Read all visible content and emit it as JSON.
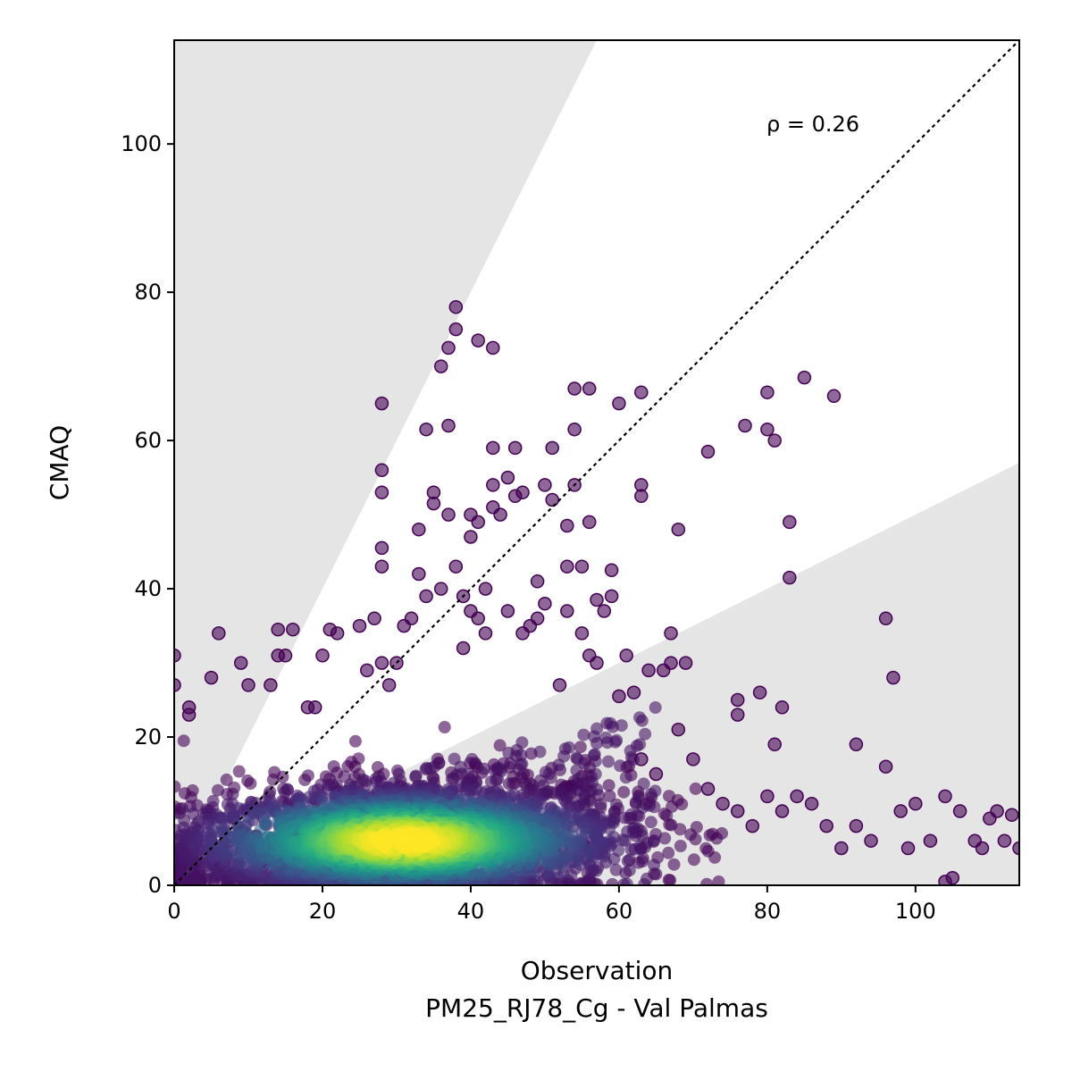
{
  "chart_data": {
    "type": "scatter",
    "title": "",
    "xlabel": "Observation",
    "xlabel_sub": "PM25_RJ78_Cg - Val Palmas",
    "ylabel": "CMAQ",
    "xlim": [
      0,
      114
    ],
    "ylim": [
      0,
      114
    ],
    "xticks": [
      0,
      20,
      40,
      60,
      80,
      100
    ],
    "yticks": [
      0,
      20,
      40,
      60,
      80,
      100
    ],
    "annotation": "ρ = 0.26",
    "reference_line": {
      "type": "1:1",
      "style": "dotted",
      "color": "#000000"
    },
    "shaded_regions": [
      {
        "description": "above factor-of-2 line",
        "slope": 2,
        "color": "#e5e5e5"
      },
      {
        "description": "below factor-of-0.5 line",
        "slope": 0.5,
        "color": "#e5e5e5"
      }
    ],
    "grid": false,
    "legend": "none",
    "colormap": "viridis (point density)",
    "point_color_low": "#440154",
    "point_color_high": "#fde725",
    "outlier_points": [
      [
        0,
        31
      ],
      [
        0,
        27
      ],
      [
        2,
        23
      ],
      [
        2,
        24
      ],
      [
        5,
        28
      ],
      [
        6,
        34
      ],
      [
        9,
        30
      ],
      [
        10,
        27
      ],
      [
        13,
        27
      ],
      [
        14,
        34.5
      ],
      [
        14,
        31
      ],
      [
        16,
        34.5
      ],
      [
        15,
        31
      ],
      [
        18,
        24
      ],
      [
        19,
        24
      ],
      [
        20,
        31
      ],
      [
        21,
        34.5
      ],
      [
        22,
        34
      ],
      [
        25,
        35
      ],
      [
        26,
        29
      ],
      [
        27,
        36
      ],
      [
        28,
        30
      ],
      [
        28,
        65
      ],
      [
        28,
        56
      ],
      [
        28,
        53
      ],
      [
        28,
        45.5
      ],
      [
        28,
        43
      ],
      [
        29,
        27
      ],
      [
        30,
        30
      ],
      [
        31,
        35
      ],
      [
        32,
        36
      ],
      [
        33,
        42
      ],
      [
        33,
        48
      ],
      [
        34,
        39
      ],
      [
        34,
        61.5
      ],
      [
        35,
        51.5
      ],
      [
        35,
        53
      ],
      [
        36,
        70
      ],
      [
        36,
        40
      ],
      [
        37,
        62
      ],
      [
        37,
        72.5
      ],
      [
        37,
        50
      ],
      [
        38,
        78
      ],
      [
        38,
        75
      ],
      [
        38,
        43
      ],
      [
        39,
        39
      ],
      [
        39,
        32
      ],
      [
        40,
        50
      ],
      [
        40,
        47
      ],
      [
        40,
        37
      ],
      [
        41,
        73.5
      ],
      [
        41,
        49
      ],
      [
        41,
        36
      ],
      [
        42,
        40
      ],
      [
        42,
        34
      ],
      [
        43,
        72.5
      ],
      [
        43,
        59
      ],
      [
        43,
        54
      ],
      [
        43,
        51
      ],
      [
        44,
        50
      ],
      [
        45,
        55
      ],
      [
        45,
        37
      ],
      [
        46,
        52.5
      ],
      [
        46,
        59
      ],
      [
        47,
        53
      ],
      [
        47,
        34
      ],
      [
        48,
        35
      ],
      [
        49,
        41
      ],
      [
        49,
        36
      ],
      [
        50,
        54
      ],
      [
        50,
        38
      ],
      [
        51,
        59
      ],
      [
        51,
        52
      ],
      [
        52,
        27
      ],
      [
        53,
        37
      ],
      [
        53,
        43
      ],
      [
        53,
        48.5
      ],
      [
        54,
        67
      ],
      [
        54,
        61.5
      ],
      [
        54,
        54
      ],
      [
        55,
        43
      ],
      [
        55,
        34
      ],
      [
        56,
        67
      ],
      [
        56,
        49
      ],
      [
        56,
        31
      ],
      [
        57,
        38.5
      ],
      [
        57,
        30
      ],
      [
        58,
        37
      ],
      [
        59,
        39
      ],
      [
        59,
        42.5
      ],
      [
        60,
        65
      ],
      [
        60,
        25.5
      ],
      [
        61,
        31
      ],
      [
        62,
        26
      ],
      [
        63,
        54
      ],
      [
        63,
        52.5
      ],
      [
        63,
        66.5
      ],
      [
        64,
        29
      ],
      [
        66,
        29
      ],
      [
        67,
        30
      ],
      [
        67,
        34
      ],
      [
        68,
        48
      ],
      [
        69,
        30
      ],
      [
        72,
        58.5
      ],
      [
        76,
        23
      ],
      [
        76,
        25
      ],
      [
        77,
        62
      ],
      [
        79,
        26
      ],
      [
        80,
        66.5
      ],
      [
        80,
        61.5
      ],
      [
        81,
        60
      ],
      [
        81,
        19
      ],
      [
        82,
        24
      ],
      [
        83,
        49
      ],
      [
        83,
        41.5
      ],
      [
        85,
        68.5
      ],
      [
        89,
        66
      ],
      [
        92,
        19
      ],
      [
        96,
        36
      ],
      [
        97,
        28
      ],
      [
        96,
        16
      ],
      [
        98,
        10
      ],
      [
        100,
        11
      ],
      [
        102,
        6
      ],
      [
        104,
        12
      ],
      [
        106,
        10
      ],
      [
        110,
        9
      ],
      [
        111,
        10
      ],
      [
        113,
        9.5
      ],
      [
        114,
        5
      ],
      [
        104,
        0.5
      ],
      [
        105,
        1
      ],
      [
        108,
        6
      ],
      [
        109,
        5
      ],
      [
        112,
        6
      ],
      [
        99,
        5
      ],
      [
        94,
        6
      ],
      [
        92,
        8
      ],
      [
        90,
        5
      ],
      [
        88,
        8
      ],
      [
        86,
        11
      ],
      [
        84,
        12
      ],
      [
        82,
        10
      ],
      [
        80,
        12
      ],
      [
        78,
        8
      ],
      [
        76,
        10
      ],
      [
        74,
        11
      ],
      [
        72,
        13
      ],
      [
        70,
        17
      ],
      [
        68,
        21
      ],
      [
        65,
        15
      ],
      [
        63,
        17
      ]
    ],
    "dense_cluster": {
      "description": "dense body of points, peak density near (31, 6)",
      "center": [
        31,
        6
      ],
      "x_range": [
        0,
        70
      ],
      "y_range": [
        0,
        25
      ]
    }
  }
}
